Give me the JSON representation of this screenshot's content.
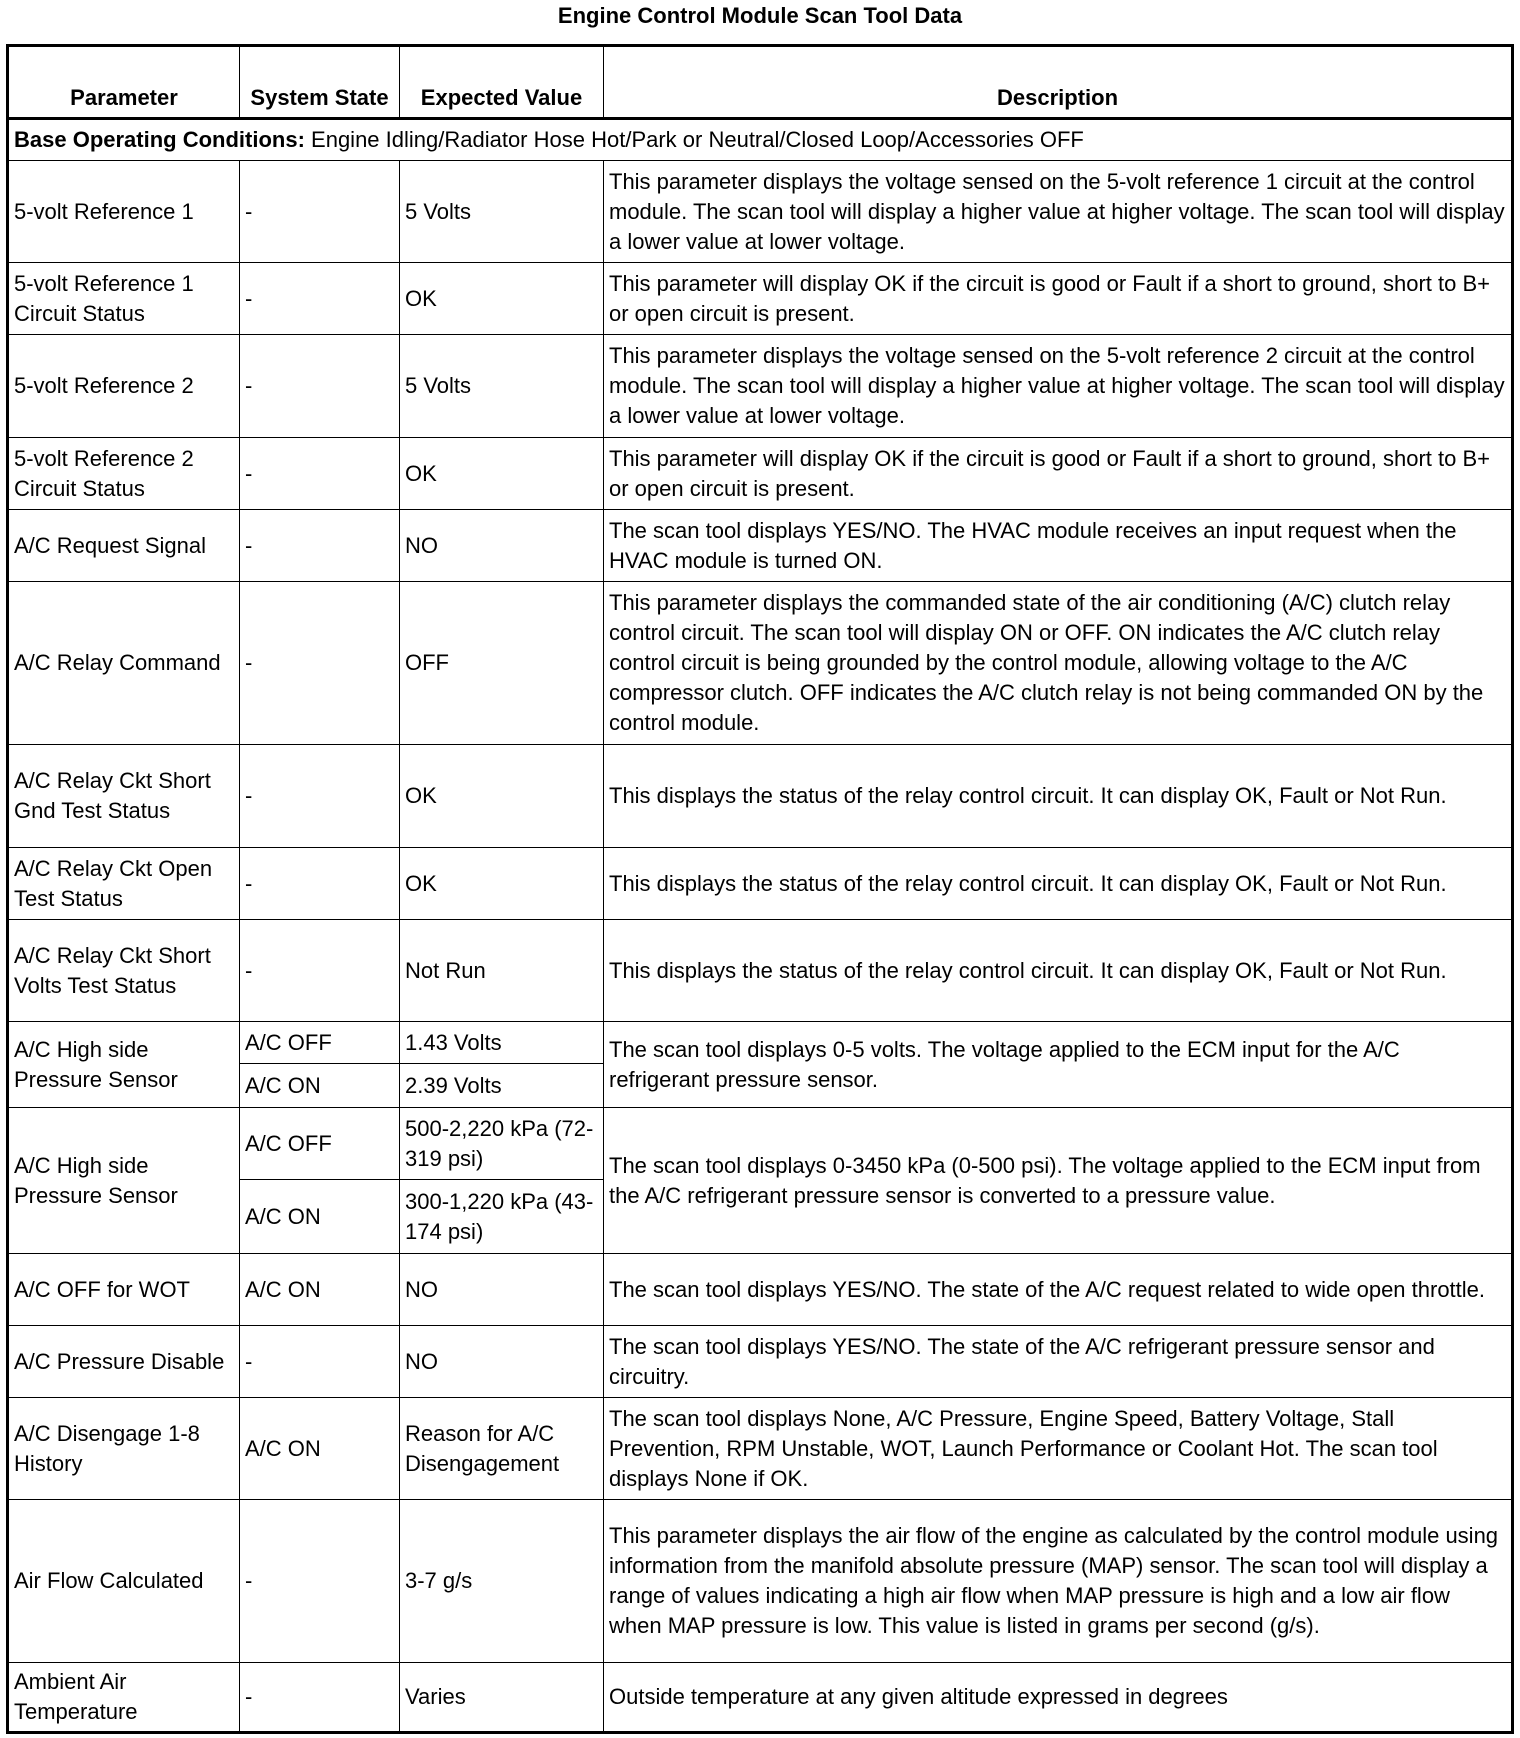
{
  "title": "Engine Control Module Scan Tool Data",
  "columns": [
    "Parameter",
    "System State",
    "Expected Value",
    "Description"
  ],
  "base_conditions": {
    "label": "Base Operating Conditions:",
    "text": " Engine Idling/Radiator Hose Hot/Park or Neutral/Closed Loop/Accessories OFF"
  },
  "rows": [
    {
      "parameter": "5-volt Reference 1",
      "states": [
        {
          "state": "-",
          "value": "5 Volts"
        }
      ],
      "description": "This parameter displays the voltage sensed on the 5-volt reference 1 circuit at the control module. The scan tool will display a higher value at higher voltage. The scan tool will display a lower value at lower voltage.",
      "h": 102
    },
    {
      "parameter": "5-volt Reference 1 Circuit Status",
      "states": [
        {
          "state": "-",
          "value": "OK"
        }
      ],
      "description": "This parameter will display OK if the circuit is good or Fault if a short to ground, short to B+ or open circuit is present.",
      "h": 72
    },
    {
      "parameter": "5-volt Reference 2",
      "states": [
        {
          "state": "-",
          "value": "5 Volts"
        }
      ],
      "description": "This parameter displays the voltage sensed on the 5-volt reference 2 circuit at the control module. The scan tool will display a higher value at higher voltage. The scan tool will display a lower value at lower voltage.",
      "h": 103
    },
    {
      "parameter": "5-volt Reference 2 Circuit Status",
      "states": [
        {
          "state": "-",
          "value": "OK"
        }
      ],
      "description": "This parameter will display OK if the circuit is good or Fault if a short to ground, short to B+ or open circuit is present.",
      "h": 72
    },
    {
      "parameter": "A/C Request Signal",
      "states": [
        {
          "state": "-",
          "value": "NO"
        }
      ],
      "description": "The scan tool displays YES/NO. The HVAC module receives an input request when the HVAC module is turned ON.",
      "h": 72
    },
    {
      "parameter": "A/C Relay Command",
      "states": [
        {
          "state": "-",
          "value": "OFF"
        }
      ],
      "description": "This parameter displays the commanded state of the air conditioning (A/C) clutch relay control circuit. The scan tool will display ON or OFF. ON indicates the A/C clutch relay control circuit is being grounded by the control module, allowing voltage to the A/C compressor clutch. OFF indicates the A/C clutch relay is not being commanded ON by the control module.",
      "h": 163
    },
    {
      "parameter": "A/C Relay Ckt Short Gnd Test Status",
      "states": [
        {
          "state": "-",
          "value": "OK"
        }
      ],
      "description": "This displays the status of the relay control circuit. It can display OK, Fault or Not Run.",
      "h": 103
    },
    {
      "parameter": "A/C Relay Ckt Open Test Status",
      "states": [
        {
          "state": "-",
          "value": "OK"
        }
      ],
      "description": "This displays the status of the relay control circuit. It can display OK, Fault or Not Run.",
      "h": 72
    },
    {
      "parameter": "A/C Relay Ckt Short Volts Test Status",
      "states": [
        {
          "state": "-",
          "value": "Not Run"
        }
      ],
      "description": "This displays the status of the relay control circuit. It can display OK, Fault or Not Run.",
      "h": 102
    },
    {
      "parameter": "A/C High side Pressure Sensor",
      "states": [
        {
          "state": "A/C OFF",
          "value": "1.43 Volts",
          "h": 42
        },
        {
          "state": "A/C ON",
          "value": "2.39 Volts",
          "h": 44
        }
      ],
      "description": "The scan tool displays 0-5 volts. The voltage applied to the ECM input for the A/C refrigerant pressure sensor."
    },
    {
      "parameter": "A/C High side Pressure Sensor",
      "states": [
        {
          "state": "A/C OFF",
          "value": "500-2,220 kPa (72-319 psi)",
          "h": 72
        },
        {
          "state": "A/C ON",
          "value": "300-1,220 kPa (43-174 psi)",
          "h": 74
        }
      ],
      "description": "The scan tool displays 0-3450  kPa (0-500 psi). The voltage applied to the ECM input from the A/C refrigerant pressure sensor is converted to a pressure value."
    },
    {
      "parameter": "A/C OFF for WOT",
      "states": [
        {
          "state": "A/C ON",
          "value": "NO"
        }
      ],
      "description": "The scan tool displays YES/NO. The state of the A/C request related to wide open throttle.",
      "h": 72
    },
    {
      "parameter": "A/C Pressure Disable",
      "states": [
        {
          "state": "-",
          "value": "NO"
        }
      ],
      "description": "The scan tool displays YES/NO. The state of the A/C refrigerant pressure sensor and circuitry.",
      "h": 72
    },
    {
      "parameter": "A/C Disengage 1-8 History",
      "states": [
        {
          "state": "A/C ON",
          "value": "Reason for A/C Disengagement"
        }
      ],
      "description": "The scan tool displays None, A/C Pressure, Engine Speed, Battery Voltage, Stall Prevention, RPM Unstable, WOT, Launch Performance or Coolant Hot. The scan tool displays None if OK.",
      "h": 102
    },
    {
      "parameter": "Air Flow Calculated",
      "states": [
        {
          "state": "-",
          "value": "3-7 g/s"
        }
      ],
      "description": "This parameter displays the air flow of the engine as calculated by the control module using information from the manifold absolute pressure (MAP) sensor. The scan tool will display a range of values indicating a high air flow when MAP pressure is high and a low air flow when MAP pressure is low. This value is listed in grams per second (g/s).",
      "h": 163
    },
    {
      "parameter": "Ambient Air Temperature",
      "states": [
        {
          "state": "-",
          "value": "Varies"
        }
      ],
      "description": "Outside temperature at any given altitude expressed in degrees",
      "h": 70
    }
  ]
}
